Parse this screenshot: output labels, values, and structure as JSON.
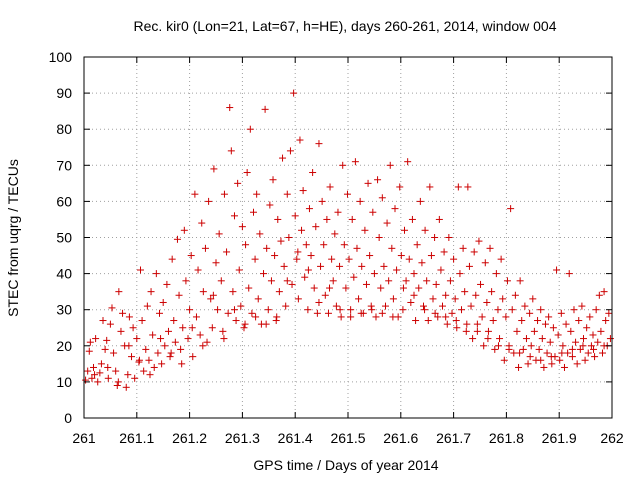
{
  "chart_data": {
    "type": "scatter",
    "title": "Rec. kir0 (Lon=21, Lat=67, h=HE), days 260-261, 2014, window 004",
    "xlabel": "GPS time / Days of year 2014",
    "ylabel": "STEC from uqrg / TECUs",
    "xlim": [
      261,
      262
    ],
    "ylim": [
      0,
      100
    ],
    "x_ticks": [
      261,
      261.1,
      261.2,
      261.3,
      261.4,
      261.5,
      261.6,
      261.7,
      261.8,
      261.9,
      262
    ],
    "x_tick_labels": [
      "261",
      "261.1",
      "261.2",
      "261.3",
      "261.4",
      "261.5",
      "261.6",
      "261.7",
      "261.8",
      "261.9",
      "262"
    ],
    "y_ticks": [
      0,
      10,
      20,
      30,
      40,
      50,
      60,
      70,
      80,
      90,
      100
    ],
    "y_tick_labels": [
      "0",
      "10",
      "20",
      "30",
      "40",
      "50",
      "60",
      "70",
      "80",
      "90",
      "100"
    ],
    "grid": true,
    "marker": "plus",
    "color": "#cc0000",
    "points": [
      [
        261.003,
        10.5
      ],
      [
        261.007,
        13
      ],
      [
        261.01,
        18.5
      ],
      [
        261.012,
        21
      ],
      [
        261.015,
        11
      ],
      [
        261.018,
        14
      ],
      [
        261.022,
        22
      ],
      [
        261.026,
        10
      ],
      [
        261.03,
        12.5
      ],
      [
        261.033,
        15
      ],
      [
        261.036,
        27
      ],
      [
        261.04,
        19
      ],
      [
        261.043,
        21.5
      ],
      [
        261.046,
        11
      ],
      [
        261.05,
        26
      ],
      [
        261.053,
        30.5
      ],
      [
        261.056,
        18
      ],
      [
        261.06,
        13
      ],
      [
        261.063,
        9
      ],
      [
        261.066,
        35
      ],
      [
        261.07,
        24
      ],
      [
        261.073,
        29
      ],
      [
        261.077,
        20
      ],
      [
        261.08,
        8.5
      ],
      [
        261.083,
        12
      ],
      [
        261.086,
        28
      ],
      [
        261.09,
        17
      ],
      [
        261.093,
        25
      ],
      [
        261.096,
        11
      ],
      [
        261.1,
        22
      ],
      [
        261.104,
        15.5
      ],
      [
        261.107,
        41
      ],
      [
        261.11,
        27
      ],
      [
        261.113,
        13
      ],
      [
        261.117,
        19
      ],
      [
        261.12,
        31
      ],
      [
        261.123,
        16
      ],
      [
        261.127,
        35
      ],
      [
        261.13,
        23
      ],
      [
        261.133,
        14
      ],
      [
        261.137,
        40
      ],
      [
        261.14,
        18
      ],
      [
        261.143,
        29
      ],
      [
        261.147,
        15
      ],
      [
        261.15,
        32
      ],
      [
        261.153,
        20
      ],
      [
        261.157,
        37
      ],
      [
        261.16,
        24
      ],
      [
        261.163,
        17
      ],
      [
        261.167,
        44
      ],
      [
        261.17,
        27
      ],
      [
        261.173,
        21
      ],
      [
        261.177,
        49.5
      ],
      [
        261.18,
        34
      ],
      [
        261.183,
        19
      ],
      [
        261.187,
        25
      ],
      [
        261.19,
        52
      ],
      [
        261.193,
        38
      ],
      [
        261.197,
        22
      ],
      [
        261.2,
        30
      ],
      [
        261.203,
        45
      ],
      [
        261.206,
        17
      ],
      [
        261.21,
        62
      ],
      [
        261.213,
        28
      ],
      [
        261.216,
        41
      ],
      [
        261.22,
        23
      ],
      [
        261.223,
        54
      ],
      [
        261.226,
        35
      ],
      [
        261.23,
        47
      ],
      [
        261.233,
        21
      ],
      [
        261.236,
        60
      ],
      [
        261.24,
        33
      ],
      [
        261.243,
        25
      ],
      [
        261.246,
        69
      ],
      [
        261.25,
        43
      ],
      [
        261.253,
        30
      ],
      [
        261.256,
        51
      ],
      [
        261.26,
        38
      ],
      [
        261.263,
        24
      ],
      [
        261.266,
        62
      ],
      [
        261.27,
        46
      ],
      [
        261.273,
        29
      ],
      [
        261.276,
        86
      ],
      [
        261.279,
        74
      ],
      [
        261.282,
        35
      ],
      [
        261.285,
        56
      ],
      [
        261.288,
        27
      ],
      [
        261.291,
        65
      ],
      [
        261.294,
        41
      ],
      [
        261.297,
        31
      ],
      [
        261.3,
        53
      ],
      [
        261.303,
        25
      ],
      [
        261.306,
        48
      ],
      [
        261.309,
        68
      ],
      [
        261.312,
        36
      ],
      [
        261.315,
        80
      ],
      [
        261.318,
        29
      ],
      [
        261.321,
        57
      ],
      [
        261.324,
        44
      ],
      [
        261.327,
        62
      ],
      [
        261.33,
        33
      ],
      [
        261.333,
        51
      ],
      [
        261.336,
        26
      ],
      [
        261.34,
        40
      ],
      [
        261.343,
        85.5
      ],
      [
        261.346,
        47
      ],
      [
        261.349,
        30
      ],
      [
        261.352,
        59
      ],
      [
        261.355,
        38
      ],
      [
        261.358,
        66
      ],
      [
        261.361,
        45
      ],
      [
        261.364,
        27
      ],
      [
        261.367,
        55
      ],
      [
        261.37,
        35
      ],
      [
        261.373,
        49
      ],
      [
        261.376,
        72
      ],
      [
        261.379,
        42
      ],
      [
        261.382,
        31
      ],
      [
        261.385,
        62
      ],
      [
        261.388,
        50
      ],
      [
        261.391,
        74
      ],
      [
        261.394,
        37
      ],
      [
        261.397,
        90
      ],
      [
        261.4,
        56
      ],
      [
        261.403,
        44
      ],
      [
        261.406,
        33
      ],
      [
        261.409,
        77
      ],
      [
        261.412,
        52
      ],
      [
        261.415,
        63
      ],
      [
        261.418,
        39
      ],
      [
        261.421,
        48
      ],
      [
        261.424,
        30
      ],
      [
        261.427,
        58
      ],
      [
        261.43,
        45
      ],
      [
        261.433,
        68
      ],
      [
        261.436,
        36
      ],
      [
        261.439,
        53
      ],
      [
        261.442,
        29
      ],
      [
        261.445,
        76
      ],
      [
        261.448,
        42
      ],
      [
        261.451,
        60
      ],
      [
        261.454,
        48
      ],
      [
        261.457,
        34
      ],
      [
        261.46,
        55
      ],
      [
        261.463,
        29
      ],
      [
        261.466,
        64
      ],
      [
        261.469,
        44
      ],
      [
        261.472,
        38
      ],
      [
        261.475,
        51
      ],
      [
        261.478,
        31
      ],
      [
        261.481,
        57
      ],
      [
        261.484,
        42
      ],
      [
        261.487,
        28
      ],
      [
        261.49,
        70
      ],
      [
        261.493,
        48
      ],
      [
        261.496,
        36
      ],
      [
        261.499,
        62
      ],
      [
        261.502,
        44
      ],
      [
        261.505,
        30
      ],
      [
        261.508,
        55
      ],
      [
        261.511,
        39
      ],
      [
        261.514,
        71
      ],
      [
        261.517,
        47
      ],
      [
        261.52,
        33
      ],
      [
        261.523,
        60
      ],
      [
        261.526,
        42
      ],
      [
        261.529,
        29
      ],
      [
        261.532,
        52
      ],
      [
        261.535,
        37
      ],
      [
        261.538,
        65
      ],
      [
        261.541,
        45
      ],
      [
        261.544,
        31
      ],
      [
        261.547,
        57
      ],
      [
        261.55,
        40
      ],
      [
        261.553,
        28
      ],
      [
        261.556,
        66
      ],
      [
        261.559,
        50
      ],
      [
        261.562,
        36
      ],
      [
        261.565,
        61
      ],
      [
        261.568,
        42
      ],
      [
        261.571,
        31
      ],
      [
        261.574,
        54
      ],
      [
        261.577,
        38
      ],
      [
        261.58,
        70
      ],
      [
        261.583,
        47
      ],
      [
        261.586,
        33
      ],
      [
        261.589,
        58
      ],
      [
        261.592,
        41
      ],
      [
        261.595,
        28
      ],
      [
        261.598,
        64
      ],
      [
        261.601,
        45
      ],
      [
        261.604,
        30
      ],
      [
        261.607,
        52
      ],
      [
        261.61,
        38
      ],
      [
        261.613,
        71
      ],
      [
        261.616,
        44
      ],
      [
        261.619,
        32
      ],
      [
        261.622,
        55
      ],
      [
        261.625,
        40
      ],
      [
        261.628,
        27
      ],
      [
        261.631,
        48
      ],
      [
        261.634,
        36
      ],
      [
        261.637,
        60
      ],
      [
        261.64,
        43
      ],
      [
        261.643,
        31
      ],
      [
        261.646,
        52
      ],
      [
        261.649,
        38
      ],
      [
        261.652,
        27
      ],
      [
        261.655,
        64
      ],
      [
        261.658,
        45
      ],
      [
        261.661,
        33
      ],
      [
        261.664,
        50
      ],
      [
        261.667,
        37
      ],
      [
        261.67,
        28
      ],
      [
        261.673,
        55
      ],
      [
        261.676,
        41
      ],
      [
        261.679,
        31
      ],
      [
        261.682,
        46
      ],
      [
        261.685,
        34
      ],
      [
        261.688,
        26
      ],
      [
        261.691,
        50
      ],
      [
        261.694,
        38
      ],
      [
        261.697,
        29
      ],
      [
        261.7,
        44
      ],
      [
        261.703,
        33
      ],
      [
        261.706,
        25
      ],
      [
        261.709,
        64
      ],
      [
        261.712,
        40
      ],
      [
        261.715,
        30
      ],
      [
        261.718,
        47
      ],
      [
        261.721,
        35
      ],
      [
        261.724,
        24
      ],
      [
        261.727,
        64
      ],
      [
        261.73,
        42
      ],
      [
        261.733,
        31
      ],
      [
        261.736,
        22
      ],
      [
        261.739,
        46
      ],
      [
        261.742,
        34
      ],
      [
        261.745,
        26
      ],
      [
        261.748,
        49
      ],
      [
        261.751,
        37
      ],
      [
        261.754,
        28
      ],
      [
        261.757,
        20
      ],
      [
        261.76,
        43
      ],
      [
        261.763,
        32
      ],
      [
        261.766,
        24
      ],
      [
        261.769,
        47
      ],
      [
        261.772,
        35
      ],
      [
        261.775,
        27
      ],
      [
        261.778,
        19
      ],
      [
        261.781,
        40
      ],
      [
        261.784,
        30
      ],
      [
        261.787,
        22
      ],
      [
        261.79,
        44
      ],
      [
        261.793,
        33
      ],
      [
        261.796,
        16
      ],
      [
        261.799,
        28
      ],
      [
        261.802,
        38
      ],
      [
        261.805,
        20
      ],
      [
        261.808,
        58
      ],
      [
        261.811,
        30
      ],
      [
        261.814,
        18
      ],
      [
        261.817,
        34
      ],
      [
        261.82,
        24
      ],
      [
        261.823,
        14
      ],
      [
        261.826,
        38
      ],
      [
        261.829,
        27
      ],
      [
        261.832,
        19
      ],
      [
        261.835,
        31
      ],
      [
        261.838,
        22
      ],
      [
        261.841,
        15
      ],
      [
        261.844,
        29
      ],
      [
        261.847,
        20
      ],
      [
        261.85,
        33
      ],
      [
        261.853,
        24
      ],
      [
        261.856,
        16
      ],
      [
        261.859,
        27
      ],
      [
        261.862,
        19
      ],
      [
        261.865,
        30
      ],
      [
        261.868,
        22
      ],
      [
        261.871,
        14
      ],
      [
        261.874,
        26
      ],
      [
        261.877,
        18
      ],
      [
        261.88,
        28
      ],
      [
        261.883,
        21
      ],
      [
        261.886,
        15
      ],
      [
        261.889,
        25
      ],
      [
        261.892,
        17
      ],
      [
        261.895,
        41
      ],
      [
        261.898,
        23
      ],
      [
        261.901,
        16
      ],
      [
        261.904,
        29
      ],
      [
        261.907,
        20
      ],
      [
        261.91,
        14
      ],
      [
        261.913,
        26
      ],
      [
        261.916,
        18
      ],
      [
        261.919,
        40
      ],
      [
        261.922,
        24
      ],
      [
        261.925,
        17
      ],
      [
        261.928,
        30
      ],
      [
        261.931,
        21
      ],
      [
        261.934,
        15
      ],
      [
        261.937,
        27
      ],
      [
        261.94,
        19
      ],
      [
        261.943,
        31
      ],
      [
        261.946,
        22
      ],
      [
        261.949,
        16
      ],
      [
        261.952,
        25
      ],
      [
        261.955,
        18
      ],
      [
        261.958,
        28
      ],
      [
        261.961,
        20
      ],
      [
        261.964,
        23
      ],
      [
        261.967,
        17
      ],
      [
        261.97,
        30
      ],
      [
        261.973,
        21
      ],
      [
        261.976,
        34
      ],
      [
        261.979,
        24
      ],
      [
        261.982,
        18
      ],
      [
        261.985,
        35
      ],
      [
        261.988,
        27
      ],
      [
        261.991,
        20
      ],
      [
        261.994,
        29
      ],
      [
        261.997,
        22
      ],
      [
        261.02,
        12
      ],
      [
        261.045,
        14
      ],
      [
        261.065,
        10
      ],
      [
        261.085,
        20
      ],
      [
        261.105,
        16
      ],
      [
        261.125,
        12
      ],
      [
        261.145,
        22
      ],
      [
        261.165,
        18
      ],
      [
        261.185,
        15
      ],
      [
        261.205,
        25
      ],
      [
        261.225,
        20
      ],
      [
        261.245,
        34
      ],
      [
        261.265,
        22
      ],
      [
        261.285,
        30
      ],
      [
        261.305,
        26
      ],
      [
        261.325,
        28
      ],
      [
        261.345,
        26
      ],
      [
        261.365,
        28
      ],
      [
        261.385,
        38
      ],
      [
        261.405,
        46
      ],
      [
        261.425,
        41
      ],
      [
        261.445,
        32
      ],
      [
        261.465,
        36
      ],
      [
        261.485,
        30
      ],
      [
        261.505,
        28
      ],
      [
        261.525,
        29
      ],
      [
        261.545,
        30
      ],
      [
        261.565,
        29
      ],
      [
        261.585,
        28
      ],
      [
        261.605,
        36
      ],
      [
        261.625,
        34
      ],
      [
        261.645,
        30
      ],
      [
        261.665,
        29
      ],
      [
        261.685,
        28
      ],
      [
        261.705,
        27
      ],
      [
        261.725,
        26
      ],
      [
        261.745,
        24
      ],
      [
        261.765,
        22
      ],
      [
        261.785,
        20
      ],
      [
        261.805,
        19
      ],
      [
        261.825,
        18
      ],
      [
        261.845,
        17
      ],
      [
        261.865,
        16
      ],
      [
        261.885,
        17
      ],
      [
        261.905,
        18
      ],
      [
        261.925,
        19
      ],
      [
        261.945,
        20
      ],
      [
        261.965,
        19
      ],
      [
        261.985,
        20
      ]
    ]
  }
}
